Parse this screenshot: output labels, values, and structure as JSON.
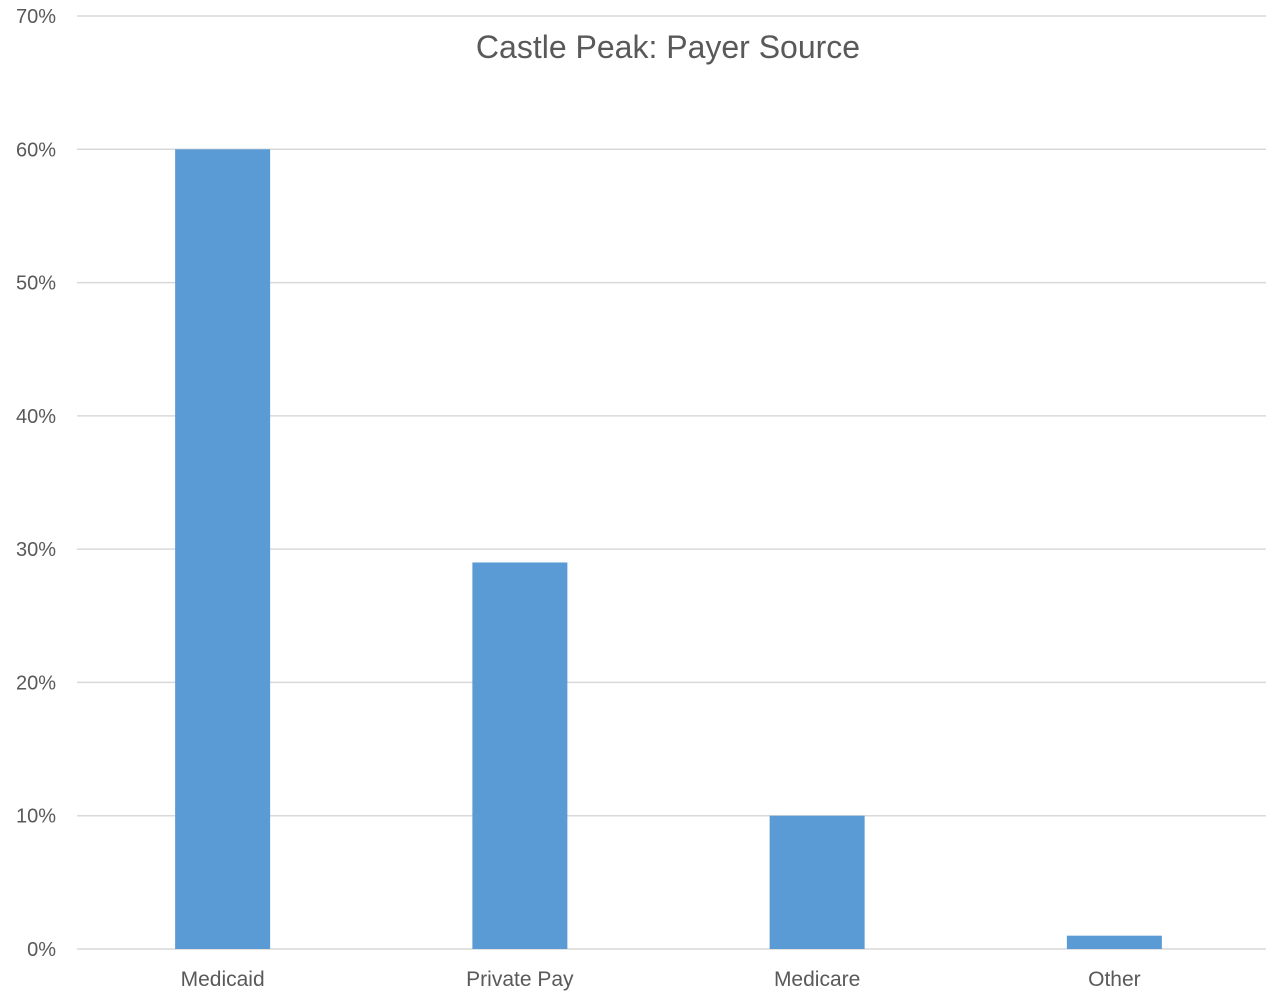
{
  "chart_data": {
    "type": "bar",
    "title": "Castle Peak: Payer Source",
    "categories": [
      "Medicaid",
      "Private Pay",
      "Medicare",
      "Other"
    ],
    "values": [
      0.6,
      0.29,
      0.1,
      0.01
    ],
    "ylim": [
      0,
      0.7
    ],
    "yticks": [
      0,
      0.1,
      0.2,
      0.3,
      0.4,
      0.5,
      0.6,
      0.7
    ],
    "ytick_labels": [
      "0%",
      "10%",
      "20%",
      "30%",
      "40%",
      "50%",
      "60%",
      "70%"
    ],
    "xlabel": "",
    "ylabel": "",
    "grid": true,
    "legend": "none",
    "colors": {
      "bar": "#5b9bd5",
      "grid": "#d9d9d9",
      "axis_text": "#595959",
      "title": "#595959"
    }
  }
}
